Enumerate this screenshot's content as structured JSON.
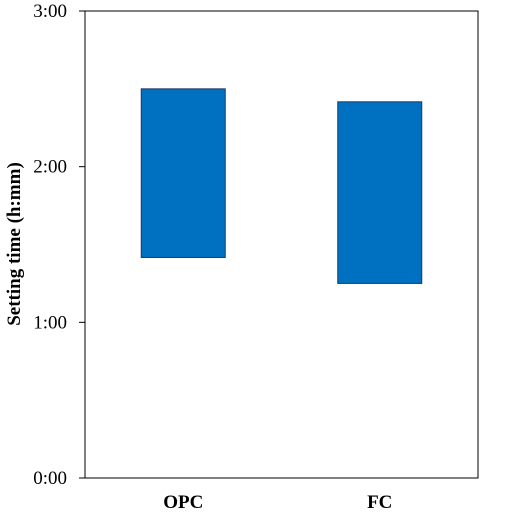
{
  "chart_data": {
    "type": "bar",
    "subtype": "floating-range",
    "title": "",
    "xlabel": "",
    "ylabel": "Setting time (h:mm)",
    "ylim_minutes": [
      0,
      180
    ],
    "yticks": [
      {
        "minutes": 0,
        "label": "0:00"
      },
      {
        "minutes": 60,
        "label": "1:00"
      },
      {
        "minutes": 120,
        "label": "2:00"
      },
      {
        "minutes": 180,
        "label": "3:00"
      }
    ],
    "categories": [
      "OPC",
      "FC"
    ],
    "series": [
      {
        "ranges": [
          {
            "category": "OPC",
            "start": "1:25",
            "end": "2:30",
            "start_minutes": 85,
            "end_minutes": 150
          },
          {
            "category": "FC",
            "start": "1:15",
            "end": "2:25",
            "start_minutes": 75,
            "end_minutes": 145
          }
        ],
        "color": "#0070C0"
      }
    ],
    "bar_border_color": "#1F3864",
    "grid": false,
    "legend": "none"
  }
}
